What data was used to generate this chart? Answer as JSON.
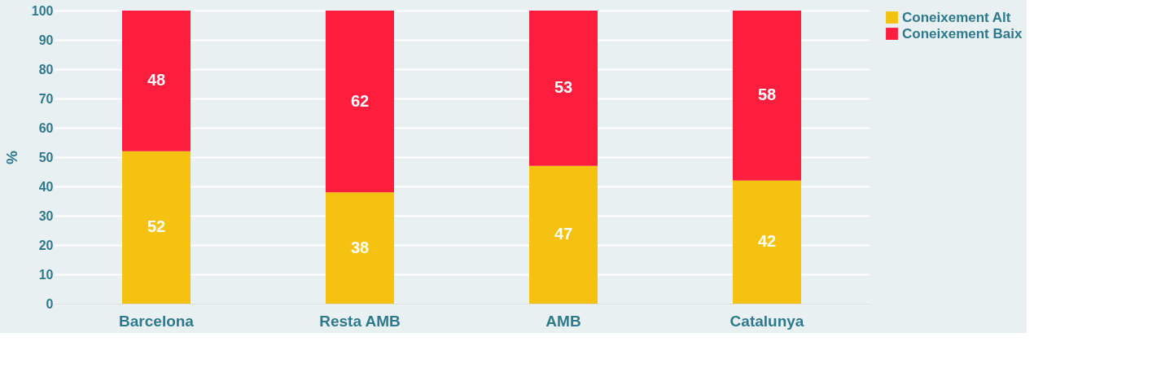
{
  "chart_data": {
    "type": "bar",
    "stacked": true,
    "ylabel": "%",
    "categories": [
      "Barcelona",
      "Resta AMB",
      "AMB",
      "Catalunya"
    ],
    "series": [
      {
        "name": "Coneixement Alt",
        "color": "#f5c211",
        "values": [
          52,
          38,
          47,
          42
        ]
      },
      {
        "name": "Coneixement Baix",
        "color": "#fc1e3c",
        "values": [
          48,
          62,
          53,
          58
        ]
      }
    ],
    "ylim": [
      0,
      100
    ],
    "yticks": [
      0,
      10,
      20,
      30,
      40,
      50,
      60,
      70,
      80,
      90,
      100
    ],
    "grid": "y",
    "legend": "right",
    "data_labels": true
  }
}
